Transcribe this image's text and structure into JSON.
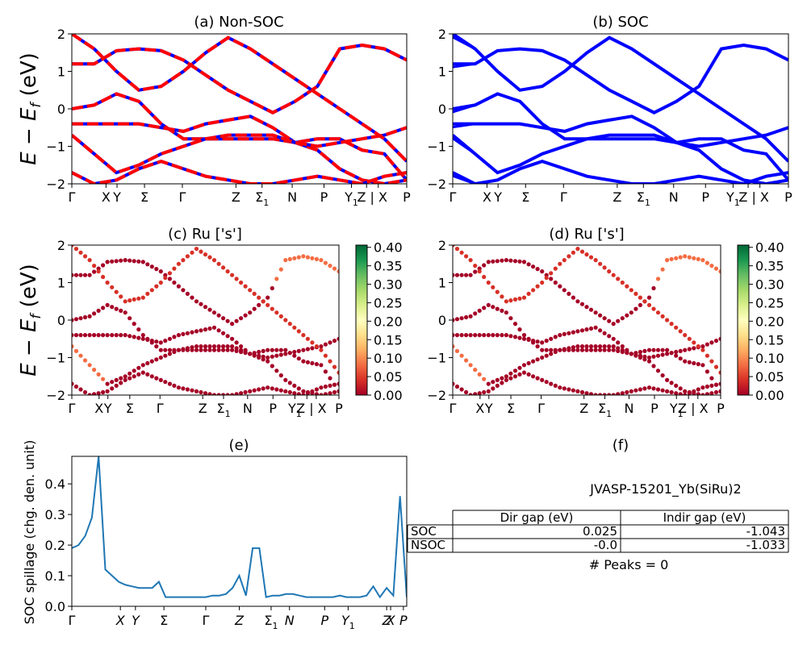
{
  "colors": {
    "nonsoc_a": "#ff0000",
    "nonsoc_b": "#0000ff",
    "soc": "#0000ff",
    "spillage": "#1f77b4",
    "cmap": [
      "#a50026",
      "#d73027",
      "#f46d43",
      "#fdae61",
      "#fee08b",
      "#ffffbf",
      "#d9ef8b",
      "#a6d96a",
      "#66bd63",
      "#1a9850",
      "#006837"
    ]
  },
  "common": {
    "ylabel_band": "E − E_f (eV)",
    "band_yticks": [
      "2",
      "1",
      "0",
      "−1",
      "−2"
    ],
    "kpath_labels": {
      "gamma": "Γ",
      "x": "X",
      "y": "Y",
      "sigma": "Σ",
      "gamma2": "Γ",
      "z": "Z",
      "sigma1": "Σ",
      "sigma1_sub": "1",
      "n": "N",
      "p": "P",
      "y1": "Y",
      "y1_sub": "1",
      "z_x": "Z | X",
      "p2": "P"
    },
    "colorbar_ticks": [
      "0.40",
      "0.35",
      "0.30",
      "0.25",
      "0.20",
      "0.15",
      "0.10",
      "0.05",
      "0.00"
    ]
  },
  "panels": {
    "a": {
      "title": "(a) Non-SOC"
    },
    "b": {
      "title": "(b) SOC"
    },
    "c": {
      "title": "(c)  Ru ['s']"
    },
    "d": {
      "title": "(d) Ru ['s']"
    },
    "e": {
      "title": "(e)",
      "ylabel": "SOC spillage (chg. den. unit)",
      "yticks": [
        "0.4",
        "0.3",
        "0.2",
        "0.1",
        "0.0"
      ],
      "xticks": [
        "Γ",
        "X",
        "Y",
        "Σ",
        "Γ",
        "Z",
        "Σ",
        "N",
        "P",
        "Y",
        "Z",
        "X",
        "P"
      ]
    },
    "f": {
      "title": "(f)",
      "material": "JVASP-15201_Yb(SiRu)2",
      "table": {
        "headers": [
          "",
          "Dir gap (eV)",
          "Indir gap (eV)"
        ],
        "rows": [
          [
            "SOC",
            "0.025",
            "-1.043"
          ],
          [
            "NSOC",
            "-0.0",
            "-1.033"
          ]
        ]
      },
      "peaks": "# Peaks = 0"
    }
  },
  "chart_data": [
    {
      "type": "line",
      "title": "(a) Non-SOC",
      "ylabel": "E − E_f (eV)",
      "ylim": [
        -2,
        2
      ],
      "x_ticks": [
        "Γ",
        "X",
        "Y",
        "Σ",
        "Γ",
        "Z",
        "Σ1",
        "N",
        "P",
        "Y1",
        "Z | X",
        "P"
      ],
      "series": [
        {
          "values": [
            1.2,
            1.2,
            1.55,
            1.6,
            1.55,
            1.3,
            0.9,
            0.5,
            0.2,
            -0.1,
            0.2,
            0.6,
            1.6,
            1.7,
            1.6,
            1.3
          ]
        },
        {
          "values": [
            0.0,
            0.1,
            0.4,
            0.2,
            -0.4,
            -0.8,
            -0.8,
            -0.8,
            -0.8,
            -0.8,
            -0.9,
            -0.8,
            -0.8,
            -1.1,
            -1.2,
            -1.9
          ]
        },
        {
          "values": [
            -0.4,
            -0.4,
            -0.4,
            -0.4,
            -0.5,
            -0.6,
            -0.4,
            -0.3,
            -0.2,
            -0.5,
            -0.9,
            -1.1,
            -1.6,
            -1.9,
            -2.0,
            -1.9
          ]
        },
        {
          "values": [
            -0.7,
            -1.2,
            -1.7,
            -1.5,
            -1.2,
            -1.0,
            -0.8,
            -0.7,
            -0.7,
            -0.7,
            -0.9,
            -1.0,
            -0.9,
            -0.8,
            -0.7,
            -0.5
          ]
        },
        {
          "values": [
            -1.7,
            -2.0,
            -1.9,
            -1.6,
            -1.4,
            -1.6,
            -1.8,
            -1.9,
            -2.0,
            -2.0,
            -1.9,
            -1.8,
            -1.9,
            -2.0,
            -1.8,
            -1.7
          ]
        },
        {
          "values": [
            2.0,
            1.6,
            1.0,
            0.5,
            0.6,
            1.0,
            1.5,
            1.9,
            1.6,
            1.2,
            0.8,
            0.4,
            0.0,
            -0.4,
            -0.8,
            -1.4
          ]
        }
      ]
    },
    {
      "type": "line",
      "title": "(b) SOC",
      "ylabel": "",
      "ylim": [
        -2,
        2
      ],
      "x_ticks": [
        "Γ",
        "X",
        "Y",
        "Σ",
        "Γ",
        "Z",
        "Σ1",
        "N",
        "P",
        "Y1",
        "Z | X",
        "P"
      ],
      "series": [
        {
          "values": [
            1.2,
            1.2,
            1.55,
            1.6,
            1.55,
            1.3,
            0.9,
            0.5,
            0.2,
            -0.1,
            0.2,
            0.6,
            1.6,
            1.7,
            1.6,
            1.3
          ]
        },
        {
          "values": [
            0.0,
            0.1,
            0.4,
            0.2,
            -0.4,
            -0.8,
            -0.8,
            -0.8,
            -0.8,
            -0.8,
            -0.9,
            -0.8,
            -0.8,
            -1.1,
            -1.2,
            -1.9
          ]
        },
        {
          "values": [
            -0.4,
            -0.4,
            -0.4,
            -0.4,
            -0.5,
            -0.6,
            -0.4,
            -0.3,
            -0.2,
            -0.5,
            -0.9,
            -1.1,
            -1.6,
            -1.9,
            -2.0,
            -1.9
          ]
        },
        {
          "values": [
            -0.7,
            -1.2,
            -1.7,
            -1.5,
            -1.2,
            -1.0,
            -0.8,
            -0.7,
            -0.7,
            -0.7,
            -0.9,
            -1.0,
            -0.9,
            -0.8,
            -0.7,
            -0.5
          ]
        },
        {
          "values": [
            -1.7,
            -2.0,
            -1.9,
            -1.6,
            -1.4,
            -1.6,
            -1.8,
            -1.9,
            -2.0,
            -2.0,
            -1.9,
            -1.8,
            -1.9,
            -2.0,
            -1.8,
            -1.7
          ]
        },
        {
          "values": [
            2.0,
            1.6,
            1.0,
            0.5,
            0.6,
            1.0,
            1.5,
            1.9,
            1.6,
            1.2,
            0.8,
            0.4,
            0.0,
            -0.4,
            -0.8,
            -1.4
          ]
        }
      ]
    },
    {
      "type": "scatter",
      "title": "(c)  Ru ['s']",
      "ylabel": "E − E_f (eV)",
      "ylim": [
        -2,
        2
      ],
      "colorbar_range": [
        0.0,
        0.4
      ],
      "x_ticks": [
        "Γ",
        "X",
        "Y",
        "Σ",
        "Γ",
        "Z",
        "Σ1",
        "N",
        "P",
        "Y1",
        "Z | X",
        "P"
      ]
    },
    {
      "type": "scatter",
      "title": "(d) Ru ['s']",
      "ylabel": "",
      "ylim": [
        -2,
        2
      ],
      "colorbar_range": [
        0.0,
        0.4
      ],
      "x_ticks": [
        "Γ",
        "X",
        "Y",
        "Σ",
        "Γ",
        "Z",
        "Σ1",
        "N",
        "P",
        "Y1",
        "Z | X",
        "P"
      ]
    },
    {
      "type": "line",
      "title": "(e)",
      "ylabel": "SOC spillage (chg. den. unit)",
      "ylim": [
        0.0,
        0.49
      ],
      "x_ticks": [
        "Γ",
        "X",
        "Y",
        "Σ",
        "Γ",
        "Z",
        "Σ1",
        "N",
        "P",
        "Y1",
        "Z",
        "X",
        "P"
      ],
      "x": [
        0,
        2,
        4,
        6,
        8,
        10,
        12,
        14,
        16,
        18,
        20,
        22,
        24,
        26,
        28,
        30,
        32,
        34,
        36,
        38,
        40,
        42,
        44,
        46,
        48,
        50,
        52,
        54,
        56,
        58,
        60,
        62,
        64,
        66,
        68,
        70,
        72,
        74,
        76,
        78,
        80,
        82,
        84,
        86,
        88,
        90,
        92,
        94,
        96,
        98,
        100
      ],
      "values": [
        0.19,
        0.2,
        0.23,
        0.29,
        0.49,
        0.12,
        0.1,
        0.08,
        0.07,
        0.065,
        0.06,
        0.06,
        0.06,
        0.08,
        0.03,
        0.03,
        0.03,
        0.03,
        0.03,
        0.03,
        0.03,
        0.035,
        0.035,
        0.04,
        0.06,
        0.1,
        0.035,
        0.19,
        0.19,
        0.03,
        0.035,
        0.035,
        0.04,
        0.04,
        0.035,
        0.03,
        0.03,
        0.03,
        0.03,
        0.03,
        0.035,
        0.03,
        0.03,
        0.03,
        0.035,
        0.065,
        0.03,
        0.06,
        0.035,
        0.36,
        0.03
      ]
    }
  ]
}
